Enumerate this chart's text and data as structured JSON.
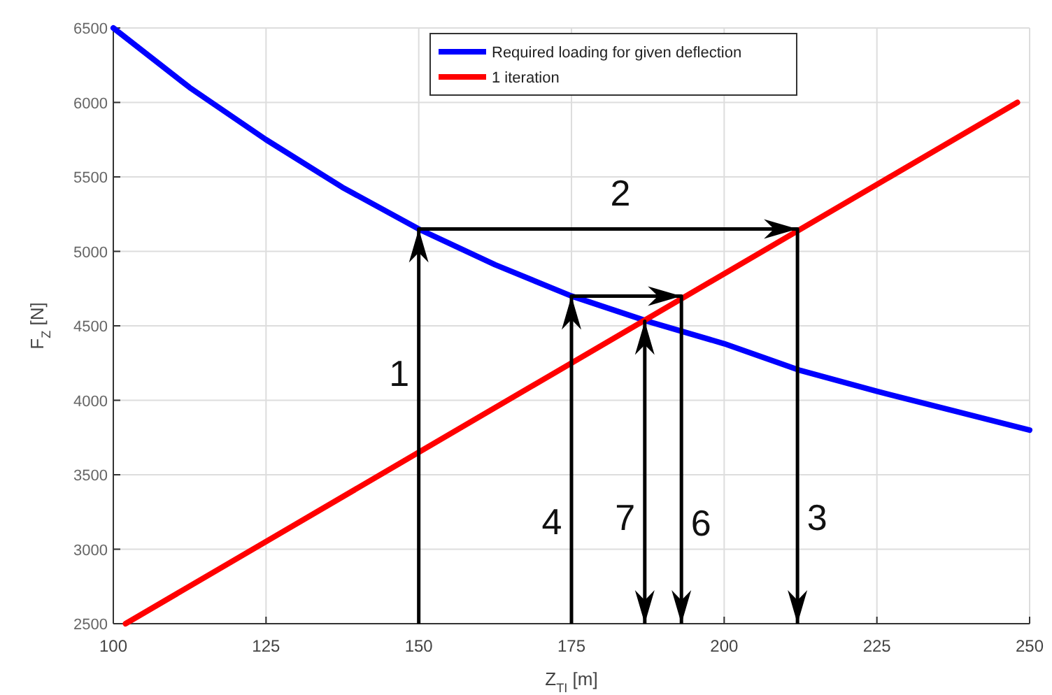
{
  "chart_data": {
    "type": "line",
    "xlabel": "Z$_{TI}$ [m]",
    "ylabel": "F$_{Z}$ [N]",
    "xlim": [
      100,
      250
    ],
    "xticks": [
      100,
      125,
      150,
      175,
      200,
      225,
      250
    ],
    "ylim": [
      2500,
      6500
    ],
    "yticks": [
      2500,
      3000,
      3500,
      4000,
      4500,
      5000,
      5500,
      6000,
      6500
    ],
    "grid": true,
    "legend": "top",
    "series": [
      {
        "name": "Required loading for given deflection",
        "color": "#0000ff",
        "x": [
          100,
          112.5,
          125,
          137.5,
          150,
          162.5,
          175,
          187.5,
          200,
          212.5,
          225,
          237.5,
          250
        ],
        "values": [
          6500,
          6100,
          5750,
          5430,
          5150,
          4910,
          4700,
          4530,
          4380,
          4200,
          4060,
          3930,
          3800
        ]
      },
      {
        "name": "1 iteration",
        "color": "#ff0000",
        "x": [
          102,
          248
        ],
        "values": [
          2500,
          6000
        ]
      },
      {
        "type": "line",
        "color": "#000000",
        "x": [
          150,
          150,
          212,
          212
        ],
        "values": [
          2500,
          5150,
          5150,
          2500
        ]
      },
      {
        "type": "line",
        "color": "#000000",
        "x": [
          175,
          175,
          193,
          193
        ],
        "values": [
          2500,
          4700,
          4700,
          2500
        ]
      },
      {
        "type": "line",
        "color": "#000000",
        "x": [
          187,
          187,
          187
        ],
        "values": [
          3500,
          4530,
          2500
        ]
      }
    ],
    "annotations": [
      {
        "text": "1",
        "x": 150,
        "y": 4180
      },
      {
        "text": "2",
        "x": 183,
        "y": 5150
      },
      {
        "text": "3",
        "x": 212,
        "y": 3214
      },
      {
        "text": "4",
        "x": 175,
        "y": 3185
      },
      {
        "text": "7",
        "x": 187,
        "y": 3214
      },
      {
        "text": "6",
        "x": 193,
        "y": 3176
      }
    ]
  }
}
